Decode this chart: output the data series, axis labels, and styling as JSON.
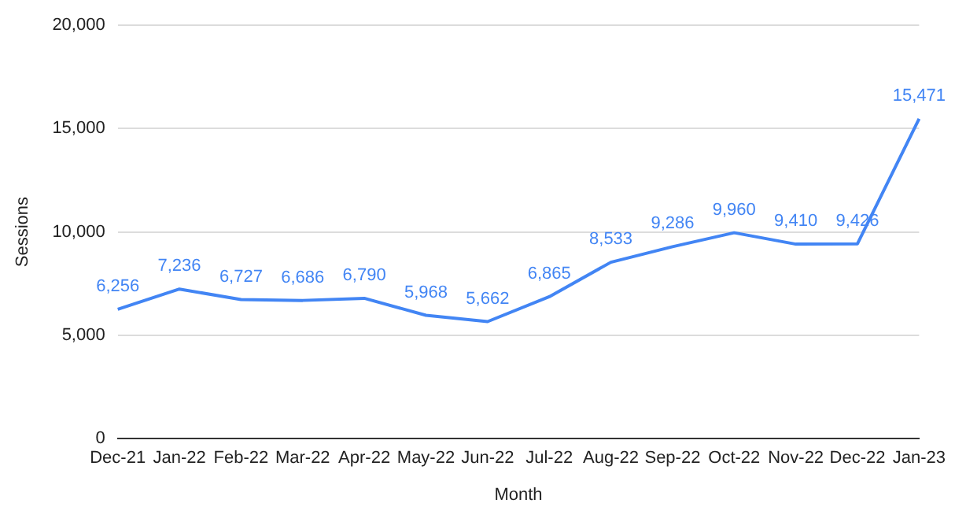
{
  "chart_data": {
    "type": "line",
    "xlabel": "Month",
    "ylabel": "Sessions",
    "categories": [
      "Dec-21",
      "Jan-22",
      "Feb-22",
      "Mar-22",
      "Apr-22",
      "May-22",
      "Jun-22",
      "Jul-22",
      "Aug-22",
      "Sep-22",
      "Oct-22",
      "Nov-22",
      "Dec-22",
      "Jan-23"
    ],
    "values": [
      6256,
      7236,
      6727,
      6686,
      6790,
      5968,
      5662,
      6865,
      8533,
      9286,
      9960,
      9410,
      9426,
      15471
    ],
    "value_labels": [
      "6,256",
      "7,236",
      "6,727",
      "6,686",
      "6,790",
      "5,968",
      "5,662",
      "6,865",
      "8,533",
      "9,286",
      "9,960",
      "9,410",
      "9,426",
      "15,471"
    ],
    "color": "#4285f4",
    "ylim": [
      0,
      20000
    ],
    "yticks": [
      {
        "value": 0,
        "label": "0"
      },
      {
        "value": 5000,
        "label": "5,000"
      },
      {
        "value": 10000,
        "label": "10,000"
      },
      {
        "value": 15000,
        "label": "15,000"
      },
      {
        "value": 20000,
        "label": "20,000"
      }
    ],
    "grid": "y",
    "legend": false,
    "marker": "none",
    "line_style": "solid"
  }
}
